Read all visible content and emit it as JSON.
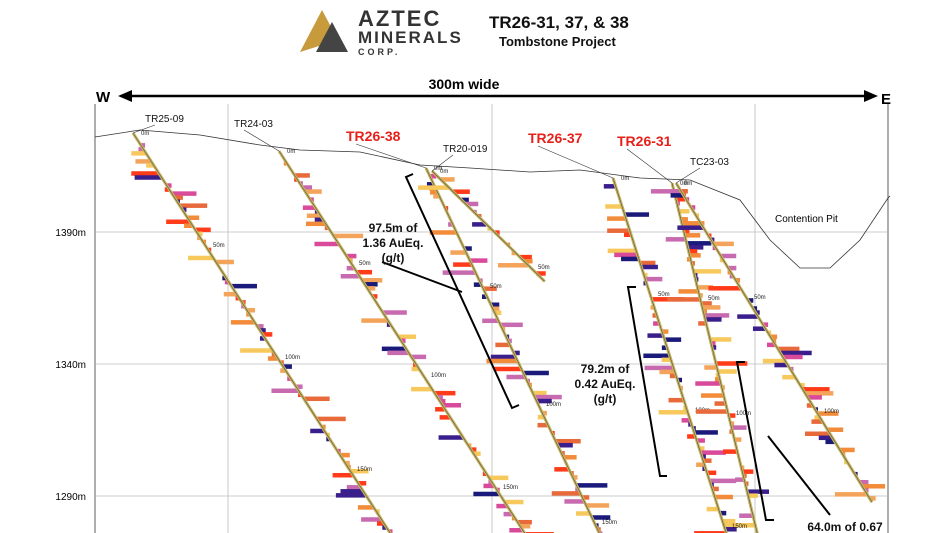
{
  "header": {
    "logo": {
      "line1": "AZTEC",
      "line2": "MINERALS",
      "line3": "CORP."
    },
    "title": "TR26-31, 37, & 38",
    "subtitle": "Tombstone Project"
  },
  "section": {
    "width_label": "300m wide",
    "west": "W",
    "east": "E",
    "elevations": [
      "1390m",
      "1340m",
      "1290m"
    ],
    "pit_label": "Contention Pit",
    "holes": [
      {
        "name": "TR25-09",
        "highlight": false,
        "depths": [
          "0m",
          "50m",
          "100m",
          "150m"
        ]
      },
      {
        "name": "TR24-03",
        "highlight": false,
        "depths": [
          "0m",
          "50m",
          "100m",
          "150m"
        ]
      },
      {
        "name": "TR26-38",
        "highlight": true,
        "depths": [
          "0m",
          "50m",
          "100m",
          "150m"
        ]
      },
      {
        "name": "TR20-019",
        "highlight": false,
        "depths": [
          "0m",
          "50m"
        ]
      },
      {
        "name": "TR26-37",
        "highlight": true,
        "depths": [
          "0m",
          "50m",
          "100m",
          "150m"
        ]
      },
      {
        "name": "TR26-31",
        "highlight": true,
        "depths": [
          "0m",
          "50m",
          "100m"
        ]
      },
      {
        "name": "TC23-03",
        "highlight": false,
        "depths": [
          "0m",
          "50m",
          "100m"
        ]
      }
    ],
    "intercepts": [
      {
        "lines": [
          "97.5m of",
          "1.36 AuEq.",
          "(g/t)"
        ]
      },
      {
        "lines": [
          "79.2m of",
          "0.42 AuEq.",
          "(g/t)"
        ]
      },
      {
        "lines": [
          "64.0m of 0.67"
        ]
      }
    ]
  }
}
